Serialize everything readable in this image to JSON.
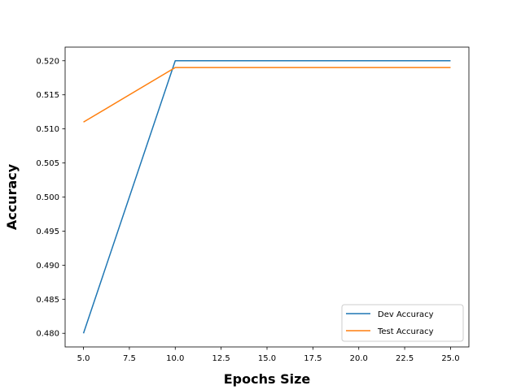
{
  "chart_data": {
    "type": "line",
    "title": "",
    "xlabel": "Epochs Size",
    "ylabel": "Accuracy",
    "x": [
      5,
      10,
      15,
      20,
      25
    ],
    "series": [
      {
        "name": "Dev Accuracy",
        "color": "#1f77b4",
        "values": [
          0.48,
          0.52,
          0.52,
          0.52,
          0.52
        ]
      },
      {
        "name": "Test Accuracy",
        "color": "#ff7f0e",
        "values": [
          0.511,
          0.519,
          0.519,
          0.519,
          0.519
        ]
      }
    ],
    "xlim": [
      4.0,
      26.0
    ],
    "ylim": [
      0.478,
      0.522
    ],
    "xticks": [
      "5.0",
      "7.5",
      "10.0",
      "12.5",
      "15.0",
      "17.5",
      "20.0",
      "22.5",
      "25.0"
    ],
    "yticks": [
      "0.480",
      "0.485",
      "0.490",
      "0.495",
      "0.500",
      "0.505",
      "0.510",
      "0.515",
      "0.520"
    ],
    "grid": false,
    "legend_position": "lower-right"
  }
}
